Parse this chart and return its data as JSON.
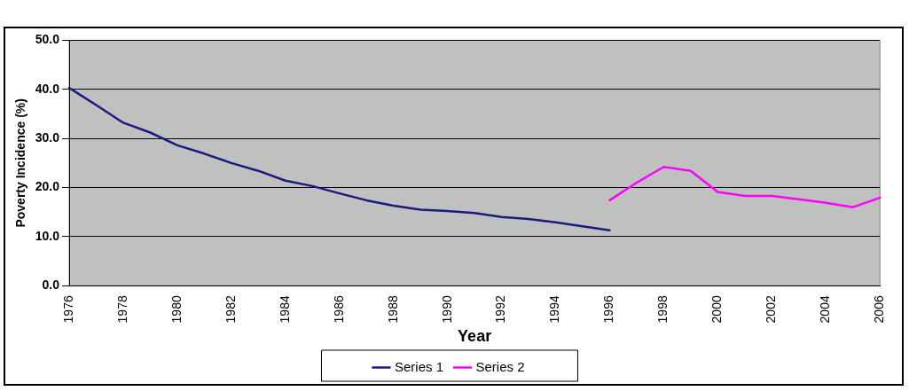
{
  "chart_data": {
    "type": "line",
    "xlabel": "Year",
    "ylabel": "Poverty Incidence (%)",
    "categories": [
      "1976",
      null,
      "1978",
      null,
      "1980",
      null,
      "1982",
      null,
      "1984",
      null,
      "1986",
      null,
      "1988",
      null,
      "1990",
      null,
      "1992",
      null,
      "1994",
      null,
      "1996",
      null,
      "1998",
      null,
      "2000",
      null,
      "2002",
      null,
      "2004",
      null,
      "2006"
    ],
    "series": [
      {
        "name": "Series 1",
        "color": "#1a1a80",
        "values": [
          40.3,
          36.8,
          33.2,
          31.2,
          28.6,
          26.9,
          25.0,
          23.4,
          21.4,
          20.3,
          18.8,
          17.4,
          16.3,
          15.5,
          15.2,
          14.8,
          14.0,
          13.6,
          12.9,
          12.1,
          11.3,
          null,
          null,
          null,
          null,
          null,
          null,
          null,
          null,
          null,
          null
        ]
      },
      {
        "name": "Series 2",
        "color": "#ff00ff",
        "values": [
          null,
          null,
          null,
          null,
          null,
          null,
          null,
          null,
          null,
          null,
          null,
          null,
          null,
          null,
          null,
          null,
          null,
          null,
          null,
          null,
          17.4,
          21.0,
          24.2,
          23.4,
          19.1,
          18.3,
          18.3,
          17.6,
          16.9,
          16.0,
          17.9
        ]
      }
    ],
    "ylim": [
      0,
      50
    ],
    "yticks": [
      {
        "value": 0,
        "label": "0.0"
      },
      {
        "value": 10,
        "label": "10.0"
      },
      {
        "value": 20,
        "label": "20.0"
      },
      {
        "value": 30,
        "label": "30.0"
      },
      {
        "value": 40,
        "label": "40.0"
      },
      {
        "value": 50,
        "label": "50.0"
      }
    ],
    "grid": "y",
    "legend": "bottom",
    "marker": "none",
    "line_style": "solid"
  }
}
